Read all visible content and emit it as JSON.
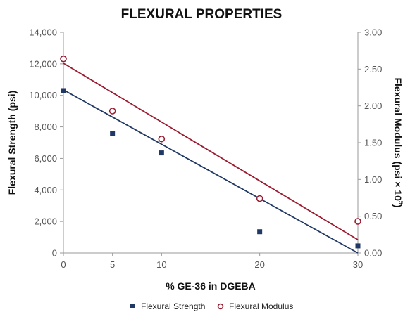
{
  "chart_data": {
    "type": "scatter",
    "title": "FLEXURAL PROPERTIES",
    "xlabel": "% GE-36 in DGEBA",
    "ylabel": "Flexural Strength (psi)",
    "y2label_main": "Flexural Modulus (psi × 10",
    "y2label_sup": "5",
    "y2label_end": ")",
    "x_ticks": [
      "0",
      "5",
      "10",
      "20",
      "30"
    ],
    "y_ticks": [
      "0",
      "2,000",
      "4,000",
      "6,000",
      "8,000",
      "10,000",
      "12,000",
      "14,000"
    ],
    "y2_ticks": [
      "0.00",
      "0.50",
      "1.00",
      "1.50",
      "2.00",
      "2.50",
      "3.00"
    ],
    "ylim": [
      0,
      14000
    ],
    "y2lim": [
      0,
      3.0
    ],
    "x_positions": [
      0,
      5,
      10,
      20,
      30
    ],
    "series": [
      {
        "name": "Flexural Strength",
        "axis": "left",
        "marker": "square",
        "color": "#1f3864",
        "x": [
          0,
          5,
          10,
          20,
          30
        ],
        "values": [
          10300,
          7600,
          6350,
          1350,
          450
        ],
        "trendline": {
          "start": [
            0,
            10350
          ],
          "end": [
            30,
            0
          ]
        }
      },
      {
        "name": "Flexural Modulus",
        "axis": "right",
        "marker": "circle",
        "color": "#9b1b30",
        "x": [
          0,
          5,
          10,
          20,
          30
        ],
        "values": [
          2.64,
          1.93,
          1.55,
          0.74,
          0.43
        ],
        "trendline": {
          "start": [
            0,
            2.58
          ],
          "end": [
            30,
            0.18
          ]
        }
      }
    ],
    "legend": "bottom",
    "grid": false
  }
}
